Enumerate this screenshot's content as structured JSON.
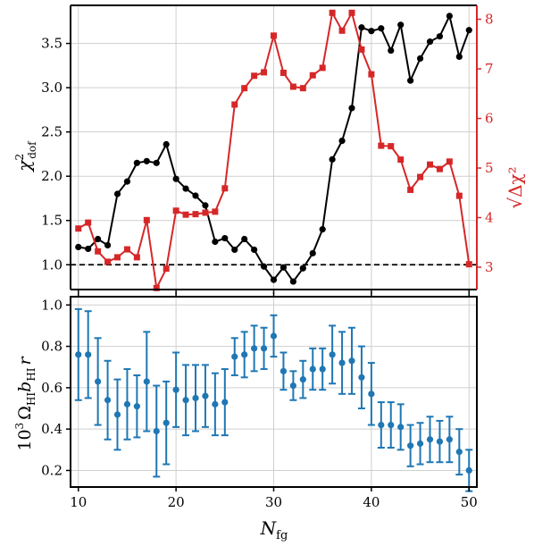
{
  "chart_data": [
    {
      "type": "line",
      "xlabel": "N_fg",
      "ylabel": "χ²_dof",
      "ylabel2": "√Δχ²",
      "xlim": [
        9.2,
        50.8
      ],
      "ylim": [
        0.72,
        3.93
      ],
      "ylim2": [
        2.55,
        8.28
      ],
      "yticks": [
        "1.0",
        "1.5",
        "2.0",
        "2.5",
        "3.0",
        "3.5"
      ],
      "yticks2": [
        "3",
        "4",
        "5",
        "6",
        "7",
        "8"
      ],
      "reference_line": {
        "y": 1.0,
        "style": "dashed",
        "color": "#000000"
      },
      "grid": true,
      "colors": {
        "left": "#000000",
        "right": "#d62728"
      },
      "x": [
        10,
        11,
        12,
        13,
        14,
        15,
        16,
        17,
        18,
        19,
        20,
        21,
        22,
        23,
        24,
        25,
        26,
        27,
        28,
        29,
        30,
        31,
        32,
        33,
        34,
        35,
        36,
        37,
        38,
        39,
        40,
        41,
        42,
        43,
        44,
        45,
        46,
        47,
        48,
        49,
        50
      ],
      "series": [
        {
          "axis": "left",
          "color": "#000000",
          "marker": "circle",
          "values": [
            1.2,
            1.18,
            1.29,
            1.22,
            1.8,
            1.94,
            2.15,
            2.17,
            2.15,
            2.36,
            1.97,
            1.86,
            1.78,
            1.67,
            1.26,
            1.3,
            1.17,
            1.29,
            1.17,
            0.98,
            0.83,
            0.97,
            0.81,
            0.96,
            1.13,
            1.4,
            2.19,
            2.4,
            2.77,
            3.68,
            3.64,
            3.67,
            3.42,
            3.71,
            3.08,
            3.33,
            3.52,
            3.58,
            3.81,
            3.35,
            3.65
          ]
        },
        {
          "axis": "right",
          "color": "#d62728",
          "marker": "square",
          "values": [
            3.78,
            3.9,
            3.32,
            3.11,
            3.2,
            3.36,
            3.2,
            3.95,
            2.58,
            2.97,
            4.14,
            4.06,
            4.07,
            4.1,
            4.12,
            4.59,
            6.28,
            6.61,
            6.86,
            6.93,
            7.67,
            6.92,
            6.64,
            6.61,
            6.87,
            7.02,
            8.13,
            7.77,
            8.13,
            7.39,
            6.89,
            5.45,
            5.44,
            5.17,
            4.56,
            4.82,
            5.07,
            4.98,
            5.13,
            4.44,
            3.06
          ]
        }
      ]
    },
    {
      "type": "scatter",
      "xlabel": "N_fg",
      "ylabel": "10³ Ω_HI b_HI r",
      "xlim": [
        9.2,
        50.8
      ],
      "ylim": [
        0.12,
        1.04
      ],
      "xticks": [
        "10",
        "20",
        "30",
        "40",
        "50"
      ],
      "yticks": [
        "0.2",
        "0.4",
        "0.6",
        "0.8",
        "1.0"
      ],
      "grid": true,
      "color": "#1f77b4",
      "x": [
        10,
        11,
        12,
        13,
        14,
        15,
        16,
        17,
        18,
        19,
        20,
        21,
        22,
        23,
        24,
        25,
        26,
        27,
        28,
        29,
        30,
        31,
        32,
        33,
        34,
        35,
        36,
        37,
        38,
        39,
        40,
        41,
        42,
        43,
        44,
        45,
        46,
        47,
        48,
        49,
        50
      ],
      "values": [
        0.76,
        0.76,
        0.63,
        0.54,
        0.47,
        0.52,
        0.51,
        0.63,
        0.39,
        0.43,
        0.59,
        0.54,
        0.55,
        0.56,
        0.52,
        0.53,
        0.75,
        0.76,
        0.79,
        0.79,
        0.85,
        0.68,
        0.61,
        0.64,
        0.69,
        0.69,
        0.76,
        0.72,
        0.73,
        0.65,
        0.57,
        0.42,
        0.42,
        0.41,
        0.32,
        0.33,
        0.35,
        0.34,
        0.35,
        0.29,
        0.2
      ],
      "error": [
        0.22,
        0.21,
        0.21,
        0.19,
        0.17,
        0.17,
        0.15,
        0.24,
        0.22,
        0.2,
        0.18,
        0.17,
        0.16,
        0.15,
        0.15,
        0.16,
        0.09,
        0.11,
        0.11,
        0.1,
        0.1,
        0.09,
        0.07,
        0.09,
        0.1,
        0.1,
        0.14,
        0.15,
        0.16,
        0.15,
        0.15,
        0.11,
        0.11,
        0.11,
        0.1,
        0.1,
        0.11,
        0.1,
        0.11,
        0.11,
        0.1
      ]
    }
  ],
  "axes": {
    "xtick_labels": [
      "10",
      "20",
      "30",
      "40",
      "50"
    ],
    "xlabel_main": "N",
    "xlabel_sub": "fg",
    "top_ylabel_main": "χ",
    "top_ylabel_sup": "2",
    "top_ylabel_sub": "dof",
    "right_ylabel": "√Δχ²",
    "bottom_ylabel_prefix": "10",
    "bottom_ylabel_sup": "3",
    "bottom_ylabel_omega": "Ω",
    "bottom_ylabel_omega_sub": "HI",
    "bottom_ylabel_b": "b",
    "bottom_ylabel_b_sub": "HI",
    "bottom_ylabel_r": "r"
  }
}
